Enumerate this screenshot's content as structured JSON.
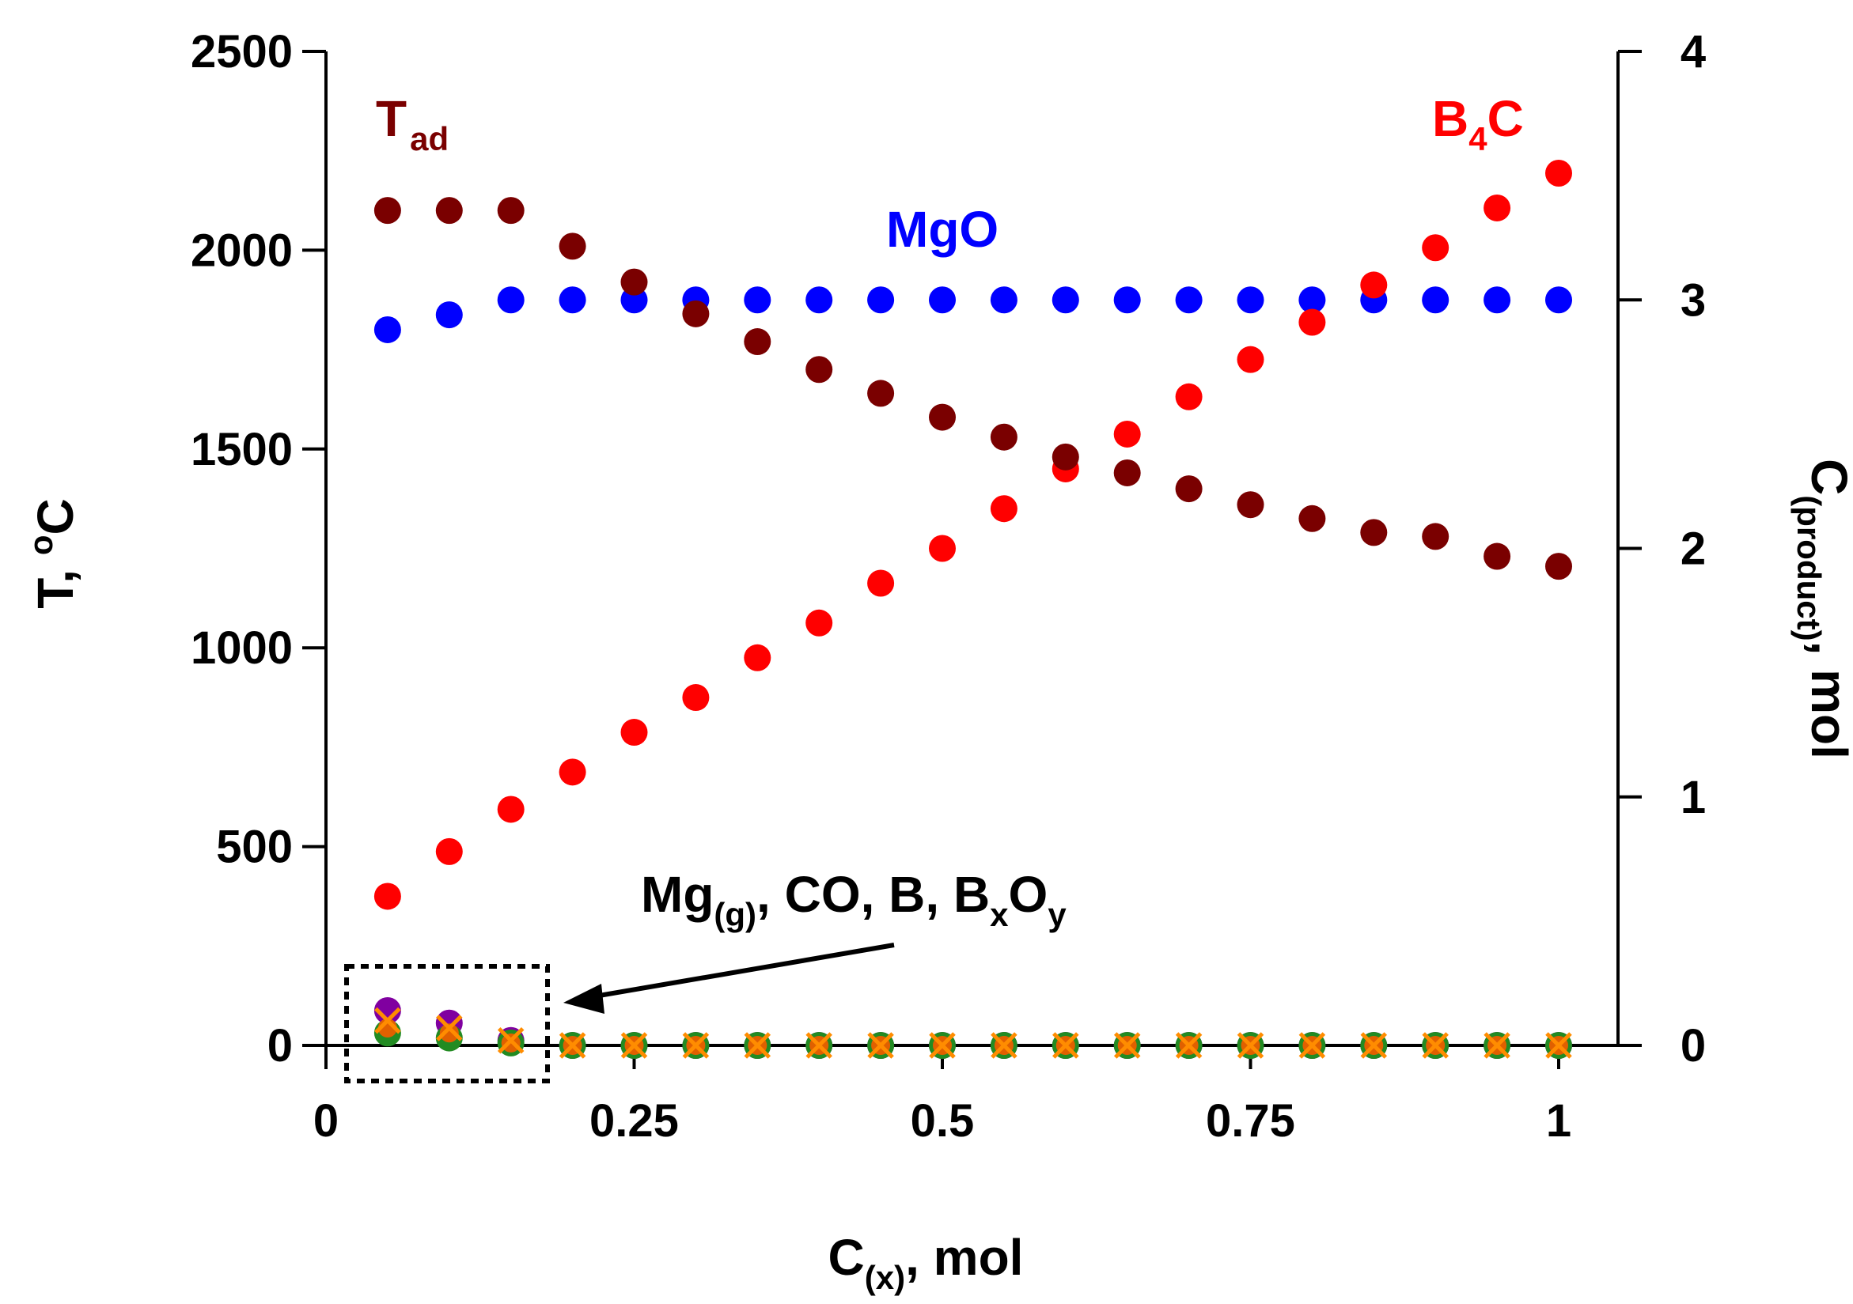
{
  "chart_data": {
    "type": "scatter",
    "title": "",
    "xlabel": {
      "main": "C",
      "sub": "(x)",
      "rest": ", mol"
    },
    "ylabel_left": {
      "main": "T, ",
      "sup": "o",
      "rest": "C"
    },
    "ylabel_right": {
      "main": "C",
      "sub": "(product)",
      "rest": ", mol"
    },
    "xlim": [
      0,
      1.05
    ],
    "ylim_left": [
      0,
      2500
    ],
    "ylim_right": [
      0,
      4
    ],
    "x_ticks": [
      0,
      0.25,
      0.5,
      0.75,
      1
    ],
    "x_tick_labels": [
      "0",
      "0.25",
      "0.5",
      "0.75",
      "1"
    ],
    "y_left_ticks": [
      0,
      500,
      1000,
      1500,
      2000,
      2500
    ],
    "y_left_tick_labels": [
      "0",
      "500",
      "1000",
      "1500",
      "2000",
      "2500"
    ],
    "y_right_ticks": [
      0,
      1,
      2,
      3,
      4
    ],
    "y_right_tick_labels": [
      "0",
      "1",
      "2",
      "3",
      "4"
    ],
    "x": [
      0.05,
      0.1,
      0.15,
      0.2,
      0.25,
      0.3,
      0.35,
      0.4,
      0.45,
      0.5,
      0.55,
      0.6,
      0.65,
      0.7,
      0.75,
      0.8,
      0.85,
      0.9,
      0.95,
      1.0
    ],
    "series": [
      {
        "name": "Tad",
        "label_main": "T",
        "label_sub": "ad",
        "axis": "left",
        "color": "#7a0000",
        "marker": "circle",
        "values": [
          2100,
          2100,
          2100,
          2010,
          1920,
          1840,
          1770,
          1700,
          1640,
          1580,
          1530,
          1480,
          1440,
          1400,
          1360,
          1325,
          1290,
          1280,
          1230,
          1205
        ]
      },
      {
        "name": "B4C",
        "label_main": "B",
        "label_sub": "4",
        "label_rest": "C",
        "axis": "right",
        "color": "#ff0000",
        "marker": "circle",
        "values": [
          0.6,
          0.78,
          0.95,
          1.1,
          1.26,
          1.4,
          1.56,
          1.7,
          1.86,
          2.0,
          2.16,
          2.32,
          2.46,
          2.61,
          2.76,
          2.91,
          3.06,
          3.21,
          3.37,
          3.51
        ]
      },
      {
        "name": "MgO",
        "label_main": "MgO",
        "axis": "right",
        "color": "#0000ff",
        "marker": "circle",
        "values": [
          2.88,
          2.94,
          3.0,
          3.0,
          3.0,
          3.0,
          3.0,
          3.0,
          3.0,
          3.0,
          3.0,
          3.0,
          3.0,
          3.0,
          3.0,
          3.0,
          3.0,
          3.0,
          3.0,
          3.0
        ]
      },
      {
        "name": "Mg(g)",
        "axis": "right",
        "color": "#8000a0",
        "marker": "circle",
        "values": [
          0.14,
          0.09,
          0.02,
          0,
          0,
          0,
          0,
          0,
          0,
          0,
          0,
          0,
          0,
          0,
          0,
          0,
          0,
          0,
          0,
          0
        ]
      },
      {
        "name": "CO",
        "axis": "right",
        "color": "#228b22",
        "marker": "circle",
        "values": [
          0.05,
          0.03,
          0.01,
          0,
          0,
          0,
          0,
          0,
          0,
          0,
          0,
          0,
          0,
          0,
          0,
          0,
          0,
          0,
          0,
          0
        ]
      },
      {
        "name": "B",
        "axis": "right",
        "color": "#ff8c00",
        "marker": "x",
        "values": [
          0.1,
          0.07,
          0.02,
          0,
          0,
          0,
          0,
          0,
          0,
          0,
          0,
          0,
          0,
          0,
          0,
          0,
          0,
          0,
          0,
          0
        ]
      },
      {
        "name": "BxOy",
        "axis": "right",
        "color": "#e06000",
        "marker": "small-circle",
        "values": [
          0.07,
          0.05,
          0.01,
          0,
          0,
          0,
          0,
          0,
          0,
          0,
          0,
          0,
          0,
          0,
          0,
          0,
          0,
          0,
          0,
          0
        ]
      }
    ],
    "annotation": {
      "text_parts": [
        {
          "t": "Mg"
        },
        {
          "t": "(g)",
          "sub": true
        },
        {
          "t": ", CO, B, B"
        },
        {
          "t": "x",
          "sub": true
        },
        {
          "t": "O"
        },
        {
          "t": "y",
          "sub": true
        }
      ]
    }
  }
}
